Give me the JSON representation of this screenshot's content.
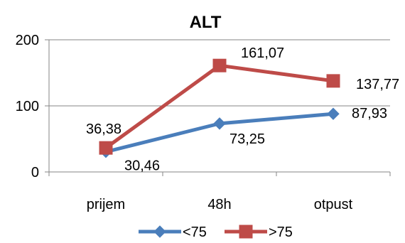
{
  "chart_data": {
    "type": "line",
    "title": "ALT",
    "xlabel": "",
    "ylabel": "",
    "categories": [
      "prijem",
      "48h",
      "otpust"
    ],
    "ylim": [
      0,
      200
    ],
    "yticks": [
      0,
      100,
      200
    ],
    "grid": true,
    "legend_position": "bottom",
    "series": [
      {
        "name": "<75",
        "values": [
          30.46,
          73.25,
          87.93
        ],
        "labels": [
          "30,46",
          "73,25",
          "87,93"
        ],
        "color": "#4a7ebb",
        "marker": "diamond"
      },
      {
        "name": ">75",
        "values": [
          36.38,
          161.07,
          137.77
        ],
        "labels": [
          "36,38",
          "161,07",
          "137,77"
        ],
        "color": "#be4b48",
        "marker": "square"
      }
    ]
  }
}
